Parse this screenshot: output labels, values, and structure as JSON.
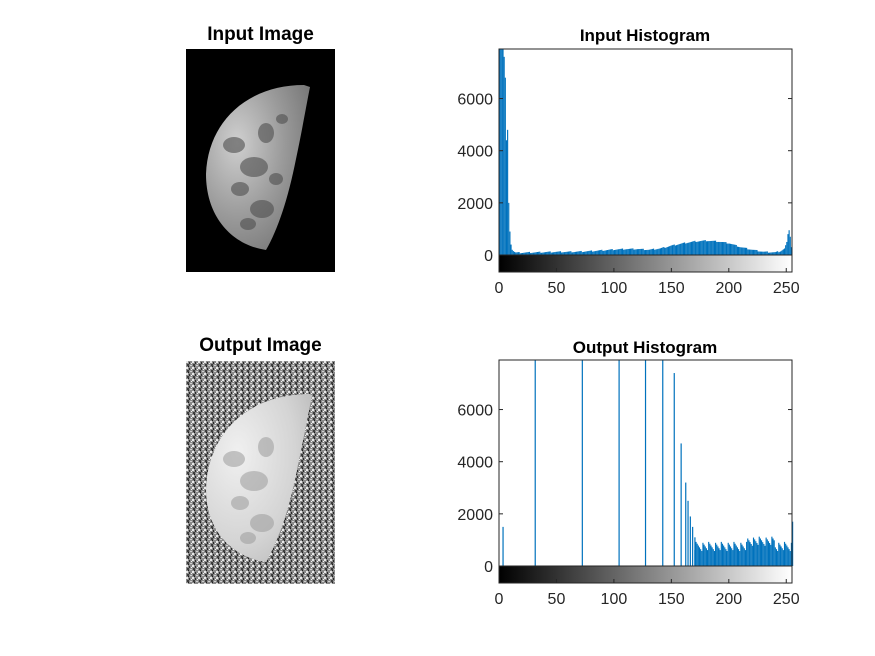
{
  "figure": {
    "background": "#ffffff",
    "bar_color": "#0072bd"
  },
  "input_image": {
    "title": "Input Image",
    "background": "#000000"
  },
  "output_image": {
    "title": "Output Image",
    "background": "#6e6e6e"
  },
  "chart_data": [
    {
      "type": "bar",
      "title": "Input Histogram",
      "xlabel": "",
      "ylabel": "",
      "xlim": [
        0,
        255
      ],
      "ylim": [
        0,
        7900
      ],
      "xticks": [
        0,
        50,
        100,
        150,
        200,
        250
      ],
      "yticks": [
        0,
        2000,
        4000,
        6000
      ],
      "grid": false,
      "colorbar": "grayscale",
      "x": [
        0,
        1,
        2,
        3,
        4,
        5,
        6,
        7,
        8,
        9,
        10,
        11,
        12,
        13,
        14,
        15,
        16,
        17,
        18,
        19,
        20,
        30,
        40,
        50,
        60,
        70,
        80,
        90,
        100,
        110,
        120,
        130,
        140,
        150,
        160,
        170,
        180,
        190,
        200,
        210,
        220,
        230,
        240,
        245,
        248,
        250,
        251,
        252,
        253,
        254,
        255
      ],
      "values": [
        7900,
        7900,
        7900,
        7900,
        7600,
        6800,
        4400,
        4800,
        2000,
        900,
        400,
        200,
        150,
        120,
        100,
        100,
        90,
        90,
        90,
        90,
        90,
        100,
        110,
        120,
        120,
        130,
        150,
        180,
        210,
        230,
        230,
        200,
        250,
        360,
        450,
        520,
        550,
        520,
        450,
        300,
        200,
        120,
        100,
        150,
        250,
        500,
        800,
        950,
        700,
        300,
        0
      ]
    },
    {
      "type": "bar",
      "title": "Output Histogram",
      "xlabel": "",
      "ylabel": "",
      "xlim": [
        0,
        255
      ],
      "ylim": [
        0,
        7900
      ],
      "xticks": [
        0,
        50,
        100,
        150,
        200,
        250
      ],
      "yticks": [
        0,
        2000,
        4000,
        6000
      ],
      "grid": false,
      "colorbar": "grayscale",
      "x": [
        3,
        31,
        72,
        104,
        127,
        142,
        152,
        158,
        162,
        164,
        166,
        168,
        170,
        255
      ],
      "values": [
        1500,
        7900,
        7900,
        7900,
        7900,
        7900,
        7400,
        4700,
        3200,
        2500,
        1900,
        1500,
        1100,
        1700
      ],
      "tail_from": 170,
      "tail_to": 254,
      "tail_level": 750
    }
  ]
}
